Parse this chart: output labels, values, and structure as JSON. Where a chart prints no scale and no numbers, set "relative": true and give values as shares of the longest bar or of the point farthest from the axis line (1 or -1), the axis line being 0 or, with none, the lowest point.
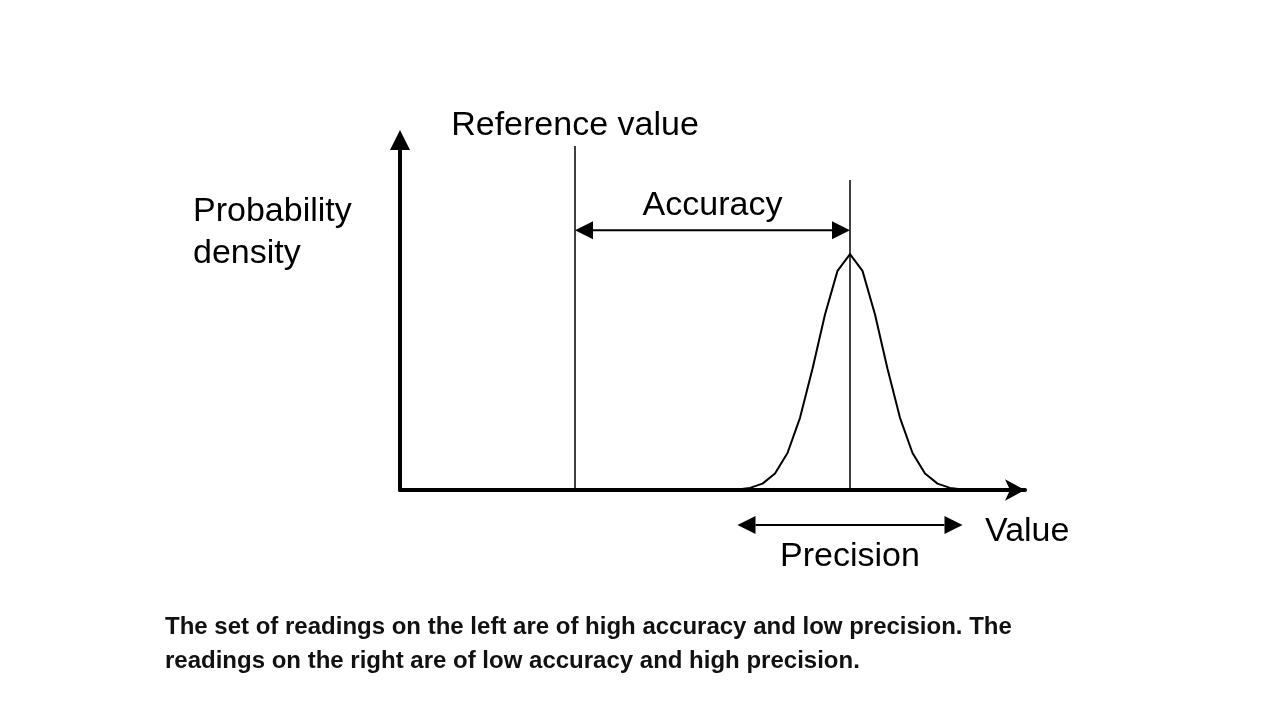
{
  "chart_data": {
    "type": "line",
    "relative": true,
    "xlabel": "Value",
    "ylabel": "Probability density",
    "color": "#000000",
    "marker": "none",
    "line_style": "solid",
    "grid": false,
    "categories": [
      null,
      null,
      null,
      null,
      null,
      null,
      null,
      null,
      null,
      null,
      null,
      null,
      null,
      null,
      null,
      null,
      null,
      null,
      null,
      null,
      null,
      null,
      null,
      null,
      null,
      null,
      null,
      null,
      null,
      null,
      null,
      null,
      null,
      null,
      null,
      null,
      null,
      null,
      null,
      null,
      null,
      null,
      null,
      null,
      null,
      null,
      null,
      null,
      null,
      null,
      null
    ],
    "values": [
      0,
      0,
      0,
      0,
      0,
      0,
      0,
      0,
      0,
      0,
      0,
      0,
      0,
      0,
      0,
      0,
      0,
      0,
      0,
      0,
      0,
      0,
      0,
      0,
      0,
      0,
      0,
      0.0025,
      0.0088,
      0.027,
      0.07,
      0.157,
      0.306,
      0.514,
      0.744,
      0.929,
      1,
      0.929,
      0.744,
      0.514,
      0.306,
      0.157,
      0.07,
      0.027,
      0.0088,
      0.0025,
      0,
      0,
      0,
      0,
      0
    ],
    "annotations": [
      "Reference value",
      "Accuracy",
      "Precision",
      "The set of readings on the left are of high accuracy and low precision. The readings on the right are of low accuracy and high precision."
    ]
  }
}
